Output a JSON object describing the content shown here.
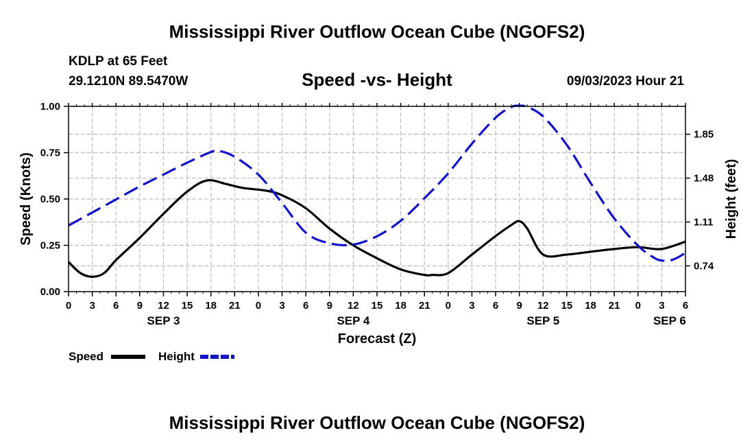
{
  "page": {
    "title": "Mississippi River Outflow Ocean Cube (NGOFS2)",
    "footer_title": "Mississippi River Outflow Ocean Cube (NGOFS2)"
  },
  "header": {
    "station": "KDLP at 65 Feet",
    "coords": "29.1210N  89.5470W",
    "chart_title": "Speed -vs- Height",
    "timestamp": "09/03/2023 Hour 21"
  },
  "legend": {
    "speed_label": "Speed",
    "height_label": "Height"
  },
  "colors": {
    "speed": "#000000",
    "height": "#1111cc",
    "grid": "#bbbbbb"
  },
  "chart_data": {
    "type": "line",
    "title": "Speed -vs- Height",
    "xlabel": "Forecast (Z)",
    "ylabel": "Speed (Knots)",
    "y2label": "Height (feet)",
    "xlim": [
      0,
      78
    ],
    "ylim": [
      0,
      1
    ],
    "y2lim": [
      0.523,
      2.085
    ],
    "x_ticks": [
      0,
      3,
      6,
      9,
      12,
      15,
      18,
      21,
      24,
      27,
      30,
      33,
      36,
      39,
      42,
      45,
      48,
      51,
      54,
      57,
      60,
      63,
      66,
      69,
      72,
      75,
      78
    ],
    "x_tick_labels": [
      "0",
      "3",
      "6",
      "9",
      "12",
      "15",
      "18",
      "21",
      "0",
      "3",
      "6",
      "9",
      "12",
      "15",
      "18",
      "21",
      "0",
      "3",
      "6",
      "9",
      "12",
      "15",
      "18",
      "21",
      "0",
      "3",
      "6"
    ],
    "day_labels": [
      {
        "x": 12,
        "label": "SEP 3"
      },
      {
        "x": 36,
        "label": "SEP 4"
      },
      {
        "x": 60,
        "label": "SEP 5"
      },
      {
        "x": 76,
        "label": "SEP 6"
      }
    ],
    "y_ticks": [
      0,
      0.25,
      0.5,
      0.75,
      1.0
    ],
    "y_tick_labels": [
      "0.00",
      "0.25",
      "0.50",
      "0.75",
      "1.00"
    ],
    "y2_ticks": [
      0.74,
      1.11,
      1.48,
      1.85
    ],
    "y2_tick_labels": [
      "0.74",
      "1.11",
      "1.48",
      "1.85"
    ],
    "grid": true,
    "series": [
      {
        "name": "Speed",
        "axis": "left",
        "style": "solid",
        "x": [
          0,
          1.5,
          3,
          4.5,
          6,
          9,
          12,
          15,
          17.5,
          20,
          22,
          25,
          27,
          30,
          33,
          36,
          39,
          42,
          45,
          46,
          48,
          51,
          54,
          56,
          57,
          58,
          60,
          63,
          66,
          69,
          72,
          75,
          78
        ],
        "y": [
          0.16,
          0.1,
          0.08,
          0.1,
          0.17,
          0.29,
          0.42,
          0.54,
          0.6,
          0.58,
          0.56,
          0.545,
          0.52,
          0.45,
          0.34,
          0.25,
          0.18,
          0.12,
          0.09,
          0.09,
          0.1,
          0.2,
          0.3,
          0.36,
          0.38,
          0.34,
          0.2,
          0.2,
          0.215,
          0.23,
          0.24,
          0.23,
          0.27
        ]
      },
      {
        "name": "Height",
        "axis": "right",
        "style": "dashed",
        "x": [
          0,
          3,
          6,
          9,
          12,
          15,
          18,
          19,
          21,
          24,
          27,
          30,
          33,
          36,
          39,
          42,
          45,
          48,
          51,
          54,
          56,
          57,
          58,
          60,
          63,
          66,
          69,
          72,
          74,
          75,
          76,
          77,
          78
        ],
        "y": [
          1.08,
          1.19,
          1.3,
          1.41,
          1.51,
          1.61,
          1.7,
          1.71,
          1.66,
          1.51,
          1.27,
          1.02,
          0.93,
          0.92,
          0.99,
          1.12,
          1.31,
          1.52,
          1.77,
          1.99,
          2.08,
          2.09,
          2.08,
          2.0,
          1.76,
          1.44,
          1.14,
          0.91,
          0.81,
          0.785,
          0.785,
          0.81,
          0.85
        ]
      }
    ]
  }
}
